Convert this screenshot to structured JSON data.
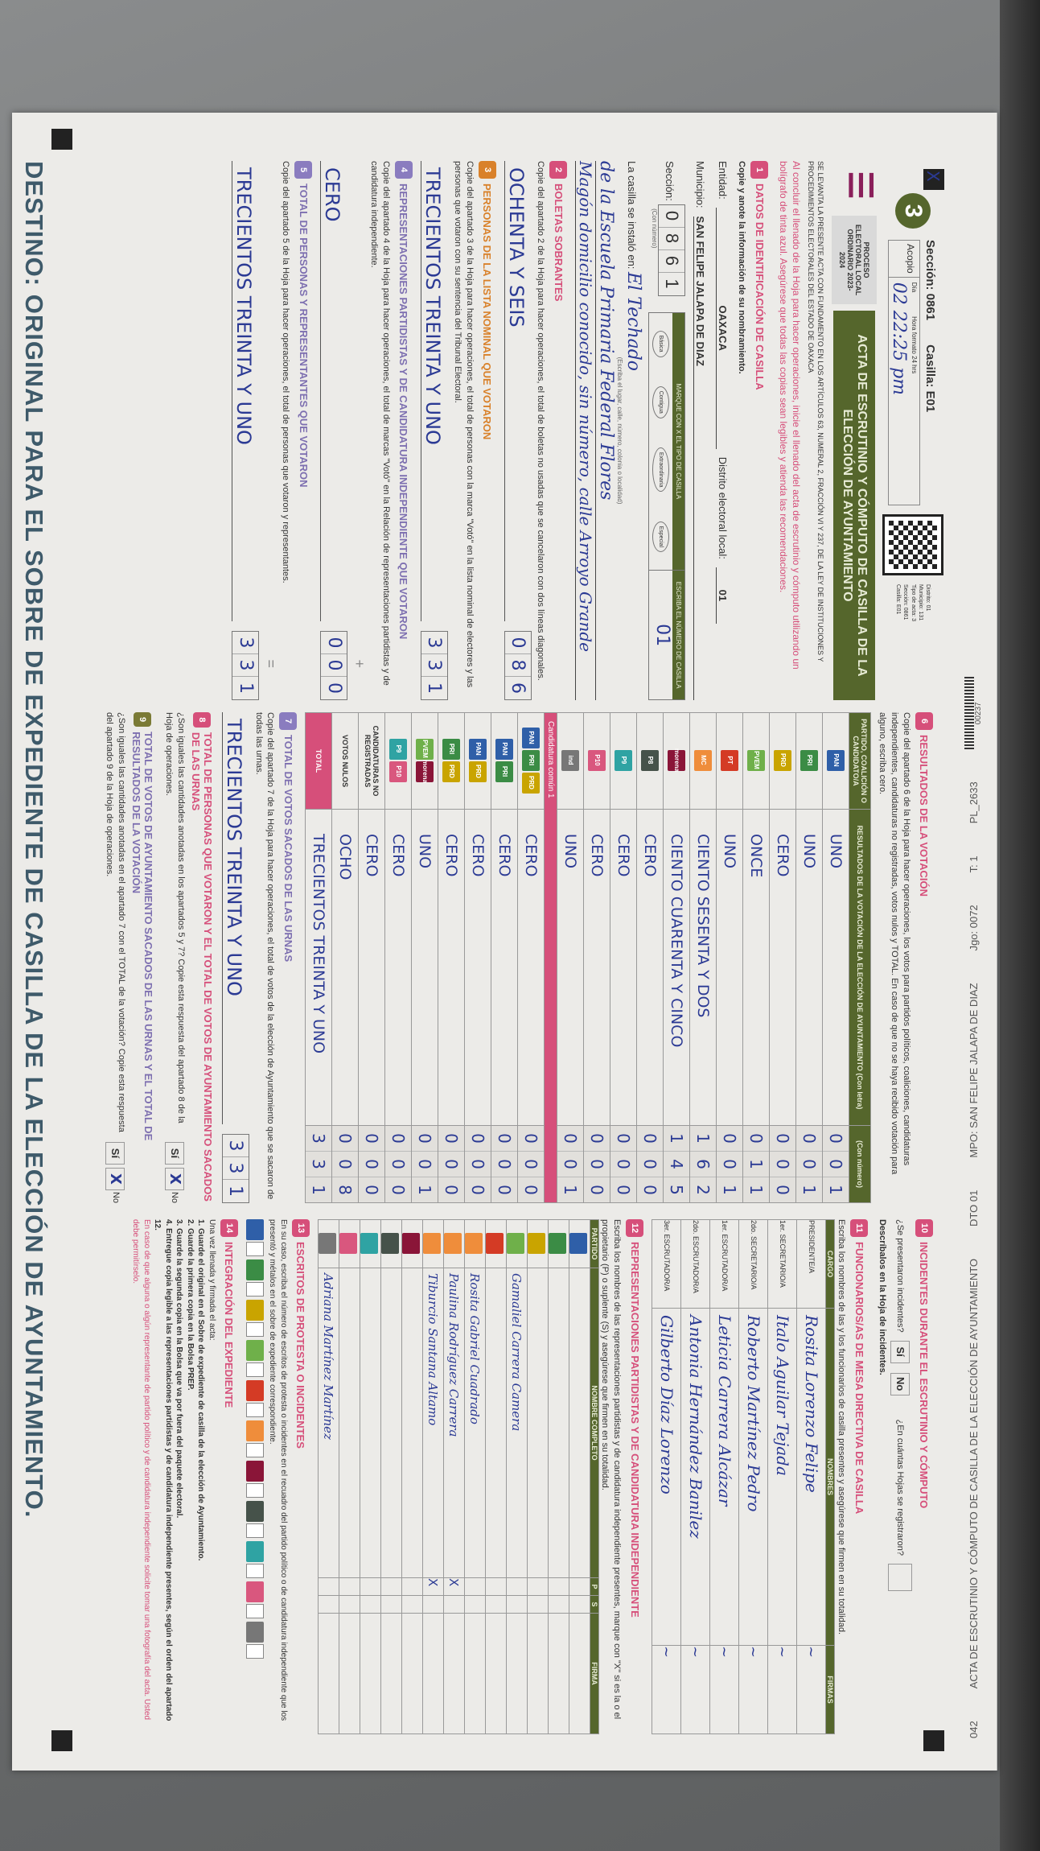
{
  "top_strip": {
    "code": "042",
    "title": "ACTA DE ESCRUTINIO Y CÓMPUTO DE CASILLA DE LA ELECCIÓN DE AYUNTAMIENTO",
    "distrito": "DTO 01",
    "municipio": "MPO: SAN FELIPE JALAPA DE DIAZ",
    "juego": "Jgo: 0072",
    "tanto": "T: 1",
    "pl": "PL_2633",
    "folio": "00237"
  },
  "header": {
    "badge": "3",
    "seccion": "Sección: 0861",
    "casilla": "Casilla: E01",
    "acopio_label": "Acopio",
    "dia_label": "Día",
    "hora_label": "Hora formato 24 hrs",
    "acopio_value": "02  22:25 pm",
    "qr_info": [
      "Distrito: 01",
      "Municipio: 131",
      "Tipo de acta: 3",
      "Sección: 0861",
      "Casilla: E01"
    ],
    "proceso": "PROCESO ELECTORAL LOCAL ORDINARIO 2023-2024",
    "title": "ACTA DE ESCRUTINIO Y CÓMPUTO DE CASILLA DE LA ELECCIÓN DE AYUNTAMIENTO",
    "legal": "SE LEVANTA LA PRESENTE ACTA CON FUNDAMENTO EN LOS ARTÍCULOS 63, NUMERAL 2, FRACCIÓN VI Y 237, DE LA LEY DE INSTITUCIONES Y PROCEDIMIENTOS ELECTORALES DEL ESTADO DE OAXACA",
    "recommend": "Al concluir el llenado de la Hoja para hacer operaciones, inicie el llenado del acta de escrutinio y cómputo utilizando un bolígrafo de tinta azul. Asegúrese que todas las copias sean legibles y atienda las recomendaciones."
  },
  "identificacion": {
    "num": "1",
    "title": "DATOS DE IDENTIFICACIÓN DE CASILLA",
    "instr": "Copie y anote la información de su nombramiento.",
    "entidad_label": "Entidad:",
    "entidad": "OAXACA",
    "distrito_label": "Distrito electoral local:",
    "distrito": "01",
    "municipio_label": "Municipio:",
    "municipio": "SAN FELIPE JALAPA DE DIAZ",
    "seccion_label": "Sección:",
    "seccion_digits": [
      "0",
      "8",
      "6",
      "1"
    ],
    "con_numero": "(Con número)",
    "tipo_title": "MARQUE CON X EL TIPO DE CASILLA",
    "tipos": [
      "Básica",
      "Contigua",
      "Extraordinaria",
      "Especial"
    ],
    "tipo_marked": "X",
    "numero_title": "ESCRIBA EL NÚMERO DE CASILLA",
    "numero": "01",
    "instalo_label": "La casilla se instaló en:",
    "instalo_hint": "(Escriba el lugar, calle, número, colonia o localidad)",
    "instalo_lines": [
      "El Techado",
      "de la Escuela Primaria Federal Flores",
      "Magón domicilio conocido, sin número, calle Arroyo Grande"
    ]
  },
  "boletas": {
    "num": "2",
    "title": "BOLETAS SOBRANTES",
    "instr": "Copie del apartado 2 de la Hoja para hacer operaciones, el total de boletas no usadas que se cancelaron con dos líneas diagonales.",
    "letra": "OCHENTA Y SEIS",
    "digits": [
      "0",
      "8",
      "6"
    ],
    "con_letra": "(Con letra)",
    "con_numero": "(Con número)"
  },
  "personas": {
    "num": "3",
    "title": "PERSONAS DE LA LISTA NOMINAL QUE VOTARON",
    "instr": "Copie del apartado 3 de la Hoja para hacer operaciones, el total de personas con la marca \"Votó\" en la lista nominal de electores y las personas que votaron con su sentencia del Tribunal Electoral.",
    "letra": "TRECIENTOS TREINTA Y UNO",
    "digits": [
      "3",
      "3",
      "1"
    ]
  },
  "representantes_votaron": {
    "num": "4",
    "title": "REPRESENTACIONES PARTIDISTAS Y DE CANDIDATURA INDEPENDIENTE QUE VOTARON",
    "instr": "Copie del apartado 4 de la Hoja para hacer operaciones, el total de marcas \"Votó\" en la Relación de representaciones partidistas y de candidatura independiente.",
    "letra": "CERO",
    "digits": [
      "0",
      "0",
      "0"
    ],
    "op": "+"
  },
  "total_personas": {
    "num": "5",
    "title": "TOTAL DE PERSONAS Y REPRESENTANTES QUE VOTARON",
    "instr": "Copie del apartado 5 de la Hoja para hacer operaciones, el total de personas que votaron y representantes.",
    "letra": "TRECIENTOS TREINTA Y UNO",
    "digits": [
      "3",
      "3",
      "1"
    ],
    "op": "="
  },
  "resultados": {
    "num": "6",
    "title": "RESULTADOS DE LA VOTACIÓN",
    "instr": "Copie del apartado 6 de la Hoja para hacer operaciones, los votos para partidos políticos, coaliciones, candidaturas independientes, candidaturas no registradas, votos nulos y TOTAL. En caso de que no se haya recibido votación para alguno, escriba cero.",
    "col_party": "PARTIDO, COALICIÓN O CANDIDATO/A",
    "col_letra": "RESULTADOS DE LA VOTACIÓN DE LA ELECCIÓN DE AYUNTAMIENTO (Con letra)",
    "col_num": "(Con número)",
    "cc1_label": "Candidatura común 1",
    "rows": [
      {
        "logos": [
          "PAN"
        ],
        "letra": "UNO",
        "digits": [
          "0",
          "0",
          "1"
        ]
      },
      {
        "logos": [
          "PRI"
        ],
        "letra": "UNO",
        "digits": [
          "0",
          "0",
          "1"
        ]
      },
      {
        "logos": [
          "PRD"
        ],
        "letra": "CERO",
        "digits": [
          "0",
          "0",
          "0"
        ]
      },
      {
        "logos": [
          "PVEM"
        ],
        "letra": "ONCE",
        "digits": [
          "0",
          "1",
          "1"
        ]
      },
      {
        "logos": [
          "PT"
        ],
        "letra": "UNO",
        "digits": [
          "0",
          "0",
          "1"
        ]
      },
      {
        "logos": [
          "MC"
        ],
        "letra": "CIENTO SESENTA Y DOS",
        "digits": [
          "1",
          "6",
          "2"
        ]
      },
      {
        "logos": [
          "morena"
        ],
        "letra": "CIENTO CUARENTA Y CINCO",
        "digits": [
          "1",
          "4",
          "5"
        ]
      },
      {
        "logos": [
          "P8"
        ],
        "letra": "CERO",
        "digits": [
          "0",
          "0",
          "0"
        ]
      },
      {
        "logos": [
          "P9"
        ],
        "letra": "CERO",
        "digits": [
          "0",
          "0",
          "0"
        ]
      },
      {
        "logos": [
          "P10"
        ],
        "letra": "CERO",
        "digits": [
          "0",
          "0",
          "0"
        ]
      },
      {
        "logos": [
          "ind"
        ],
        "letra": "UNO",
        "digits": [
          "0",
          "0",
          "1"
        ]
      },
      {
        "logos": [
          "PAN",
          "PRI",
          "PRD"
        ],
        "letra": "CERO",
        "digits": [
          "0",
          "0",
          "0"
        ]
      },
      {
        "logos": [
          "PAN",
          "PRI"
        ],
        "letra": "CERO",
        "digits": [
          "0",
          "0",
          "0"
        ]
      },
      {
        "logos": [
          "PAN",
          "PRD"
        ],
        "letra": "CERO",
        "digits": [
          "0",
          "0",
          "0"
        ]
      },
      {
        "logos": [
          "PRI",
          "PRD"
        ],
        "letra": "CERO",
        "digits": [
          "0",
          "0",
          "0"
        ]
      },
      {
        "logos": [
          "PVEM",
          "morena"
        ],
        "letra": "UNO",
        "digits": [
          "0",
          "0",
          "1"
        ]
      },
      {
        "logos": [
          "P9",
          "P10"
        ],
        "letra": "CERO",
        "digits": [
          "0",
          "0",
          "0"
        ]
      }
    ],
    "no_registrados": {
      "label": "CANDIDATURAS NO REGISTRADAS",
      "letra": "CERO",
      "digits": [
        "0",
        "0",
        "0"
      ]
    },
    "nulos": {
      "label": "VOTOS NULOS",
      "letra": "OCHO",
      "digits": [
        "0",
        "0",
        "8"
      ]
    },
    "total": {
      "label": "TOTAL",
      "letra": "TRECIENTOS TREINTA Y UNO",
      "digits": [
        "3",
        "3",
        "1"
      ]
    }
  },
  "votos_urnas": {
    "num": "7",
    "title": "TOTAL DE VOTOS SACADOS DE LAS URNAS",
    "instr": "Copie del apartado 7 de la Hoja para hacer operaciones, el total de votos de la elección de Ayuntamiento que se sacaron de todas las urnas.",
    "letra": "TRECIENTOS TREINTA Y UNO",
    "digits": [
      "3",
      "3",
      "1"
    ]
  },
  "comparacion1": {
    "num": "8",
    "title": "TOTAL DE PERSONAS QUE VOTARON Y EL TOTAL DE VOTOS DE AYUNTAMIENTO SACADOS DE LAS URNAS",
    "question": "¿Son iguales las cantidades anotadas en los apartados 5 y 7? Copie esta respuesta del apartado 8 de la Hoja de operaciones.",
    "si": "Sí",
    "no": "No",
    "answer": "X"
  },
  "comparacion2": {
    "num": "9",
    "title": "TOTAL DE VOTOS DE AYUNTAMIENTO SACADOS DE LAS URNAS Y EL TOTAL DE RESULTADOS DE LA VOTACIÓN",
    "question": "¿Son iguales las cantidades anotadas en el apartado 7 con el TOTAL de la votación? Copie esta respuesta del apartado 9 de la Hoja de operaciones.",
    "si": "Sí",
    "no": "No",
    "answer": "X"
  },
  "incidentes": {
    "num": "10",
    "title": "INCIDENTES DURANTE EL ESCRUTINIO Y CÓMPUTO",
    "question": "¿Se presentaron incidentes?",
    "si": "Sí",
    "no": "No",
    "hojas_q": "¿En cuántas Hojas se registraron?",
    "hojas_hint": "(Con número)",
    "describe": "Descríbalos en la Hoja de incidentes."
  },
  "funcionarios": {
    "num": "11",
    "title": "FUNCIONARIOS/AS DE MESA DIRECTIVA DE CASILLA",
    "instr": "Escriba los nombres de las y los funcionarios de casilla presentes y asegúrese que firmen en su totalidad.",
    "cols": [
      "CARGO",
      "NOMBRES",
      "FIRMAS"
    ],
    "rows": [
      {
        "cargo": "PRESIDENTE/A",
        "nombre": "Rosita Lorenzo Felipe"
      },
      {
        "cargo": "1er. SECRETARIO/A",
        "nombre": "Italo Aguilar Tejada"
      },
      {
        "cargo": "2do. SECRETARIO/A",
        "nombre": "Roberto Martínez Pedro"
      },
      {
        "cargo": "1er. ESCRUTADOR/A",
        "nombre": "Leticia Carrera Alcázar"
      },
      {
        "cargo": "2do. ESCRUTADOR/A",
        "nombre": "Antonia Hernández Banilez"
      },
      {
        "cargo": "3er. ESCRUTADOR/A",
        "nombre": "Gilberto Díaz Lorenzo"
      }
    ]
  },
  "representaciones": {
    "num": "12",
    "title": "REPRESENTACIONES PARTIDISTAS Y DE CANDIDATURA INDEPENDIENTE",
    "instr": "Escriba los nombres de las representaciones partidistas y de candidatura independiente presentes, marque con \"X\" si es la o el propietario (P) o suplente (S) y asegúrese que firmen en su totalidad.",
    "cols": [
      "PARTIDO",
      "NOMBRE COMPLETO",
      "P",
      "S",
      "FIRMA"
    ],
    "rows": [
      {
        "logo": "PAN",
        "nombre": "",
        "p": "",
        "s": ""
      },
      {
        "logo": "PRI",
        "nombre": "",
        "p": "",
        "s": ""
      },
      {
        "logo": "PRD",
        "nombre": "",
        "p": "",
        "s": ""
      },
      {
        "logo": "PVEM",
        "nombre": "Gamaliel Carrera Camera",
        "p": "",
        "s": ""
      },
      {
        "logo": "PT",
        "nombre": "",
        "p": "",
        "s": ""
      },
      {
        "logo": "MC",
        "nombre": "Rosita Gabriel Cuadrado",
        "p": "",
        "s": ""
      },
      {
        "logo": "MC",
        "nombre": "Paulina Rodríguez Carrera",
        "p": "X",
        "s": ""
      },
      {
        "logo": "MC",
        "nombre": "Tiburcio Santana Altamo",
        "p": "X",
        "s": ""
      },
      {
        "logo": "morena",
        "nombre": "",
        "p": "",
        "s": ""
      },
      {
        "logo": "P8",
        "nombre": "",
        "p": "",
        "s": ""
      },
      {
        "logo": "P9",
        "nombre": "",
        "p": "",
        "s": ""
      },
      {
        "logo": "P10",
        "nombre": "",
        "p": "",
        "s": ""
      },
      {
        "logo": "ind",
        "nombre": "Adriana Martínez Martínez",
        "p": "",
        "s": ""
      }
    ]
  },
  "escritos": {
    "num": "13",
    "title": "ESCRITOS DE PROTESTA O INCIDENTES",
    "instr": "En su caso, escriba el número de escritos de protesta o incidentes en el recuadro del partido político o de candidatura independiente que los presentó y métalos en el sobre de expediente correspondiente.",
    "logos": [
      "PAN",
      "PRI",
      "PRD",
      "PVEM",
      "PT",
      "MC",
      "morena",
      "P8",
      "P9",
      "P10",
      "ind"
    ]
  },
  "expediente": {
    "num": "14",
    "title": "INTEGRACIÓN DEL EXPEDIENTE",
    "intro": "Una vez llenada y firmada el acta:",
    "steps": [
      "1. Guarde el original en el Sobre de expediente de casilla de la elección de Ayuntamiento.",
      "2. Guarde la primera copia en la Bolsa PREP.",
      "3. Guarde la segunda copia en la Bolsa que va por fuera del paquete electoral.",
      "4. Entregue copia legible a las representaciones partidistas y de candidatura independiente presentes, según el orden del apartado 12."
    ],
    "note": "En caso de que alguna o algún representante de partido político y de candidatura independiente solicite tomar una fotografía del acta. Usted debe permitírselo."
  },
  "destino": "DESTINO: ORIGINAL PARA EL SOBRE DE EXPEDIENTE DE CASILLA DE LA ELECCIÓN DE AYUNTAMIENTO.",
  "colors": {
    "green": "#55662c",
    "pink": "#d64f7a",
    "purple": "#8a7cbf",
    "ink": "#2b3a94",
    "logos": {
      "PAN": "#2f5fa8",
      "PRI": "#3b8c45",
      "PRD": "#c9a400",
      "PVEM": "#6fb04a",
      "PT": "#d43b25",
      "MC": "#ef8d3b",
      "morena": "#8a1538",
      "P8": "#46524a",
      "P9": "#2fa3a3",
      "P10": "#d9577e",
      "ind": "#777777"
    }
  }
}
